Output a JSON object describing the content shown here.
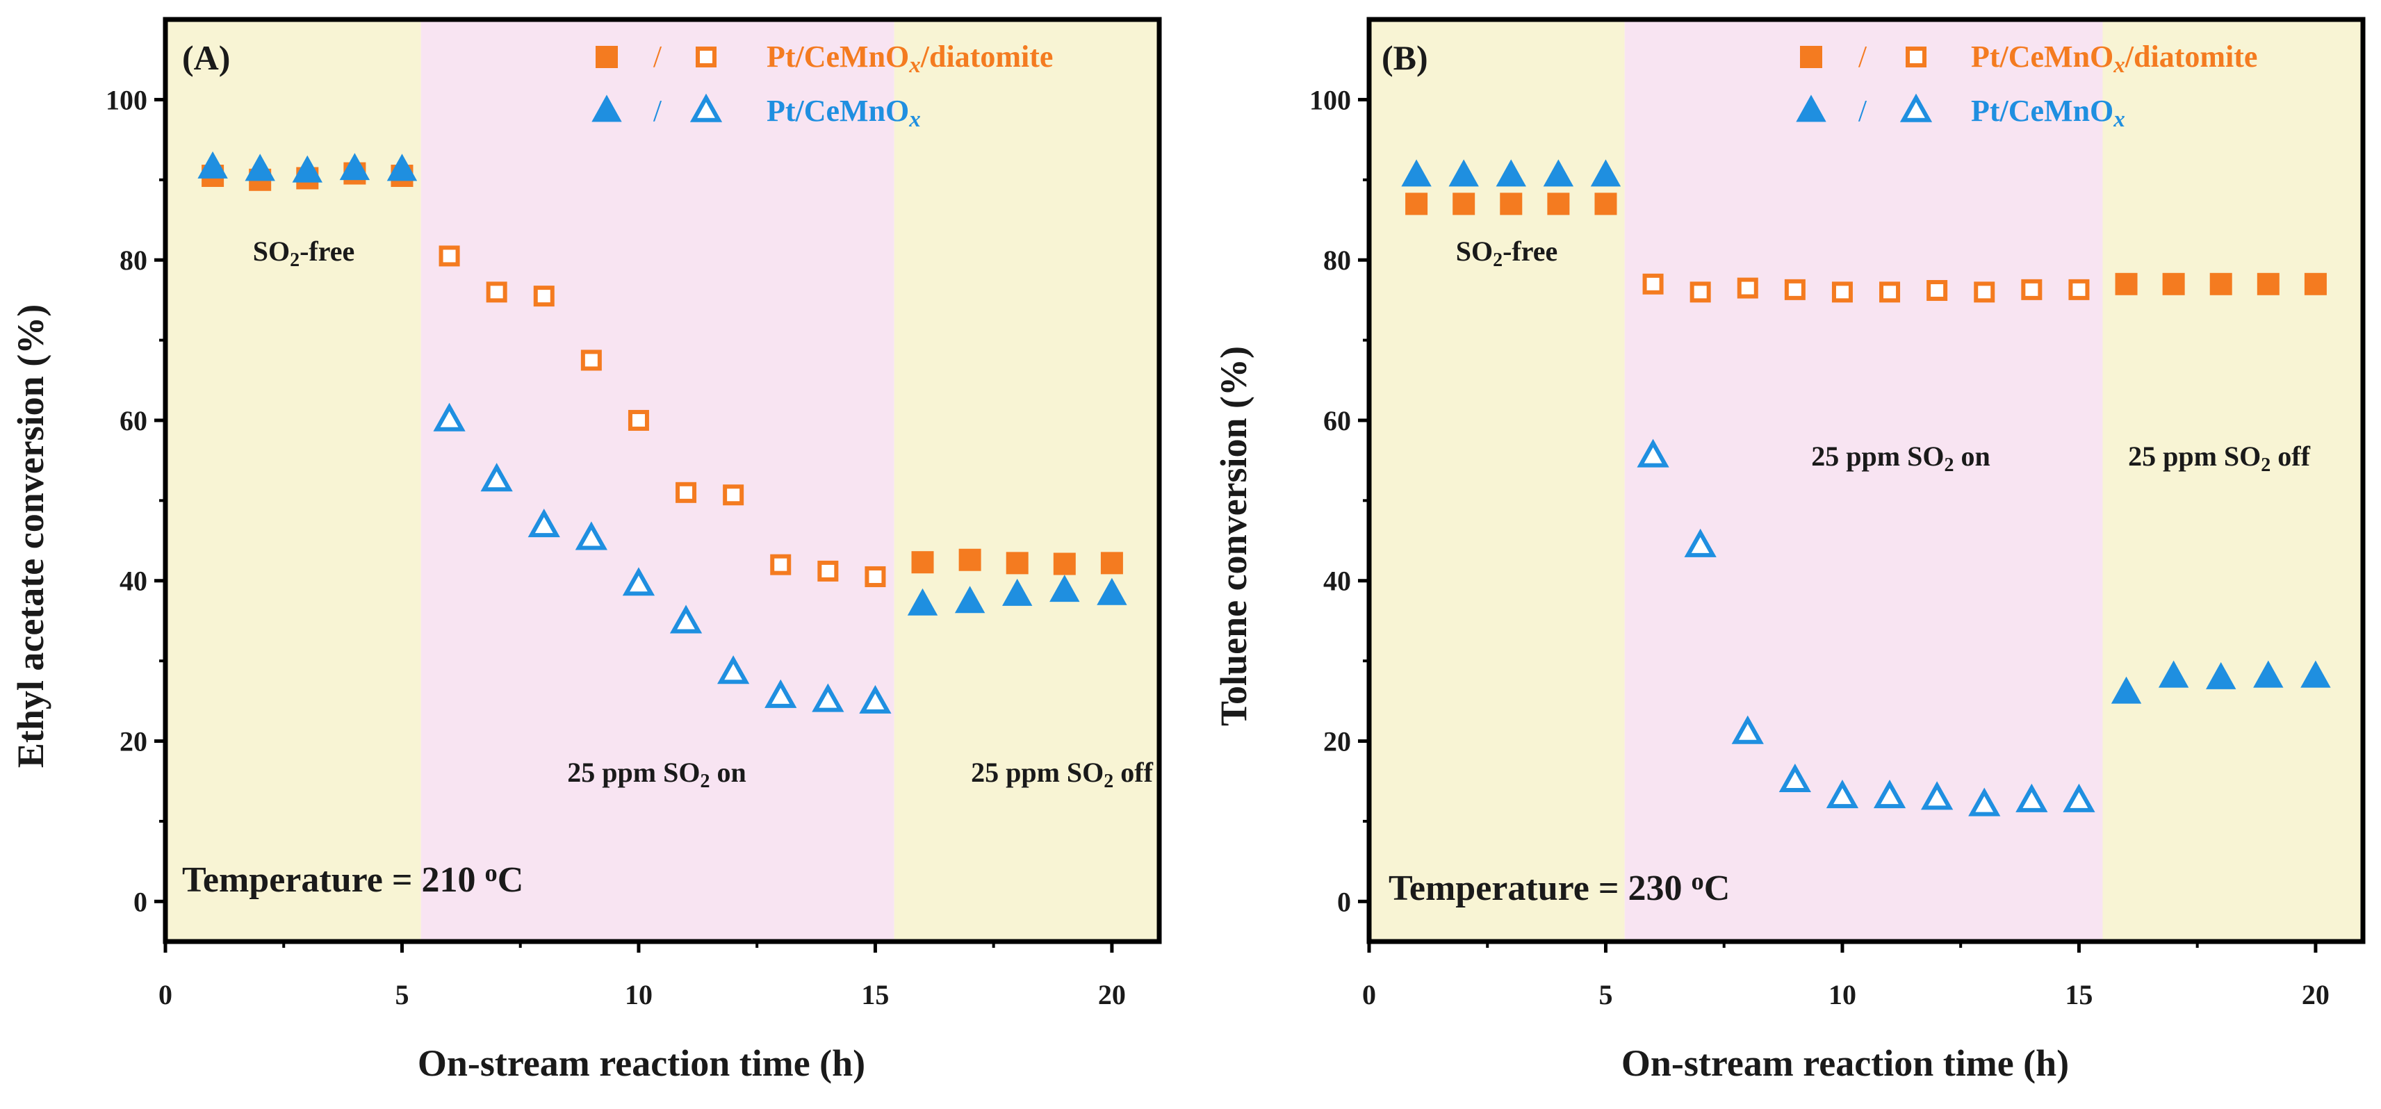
{
  "colors": {
    "orange": "#f47b20",
    "blue": "#1f8fe0",
    "yellow_region": "#f8f4d4",
    "pink_region": "#f8e4f2",
    "axis": "#000000"
  },
  "chart_data": [
    {
      "type": "scatter",
      "panel_label": "(A)",
      "ylabel": "Ethyl acetate conversion (%)",
      "xlabel": "On-stream reaction time (h)",
      "xlim": [
        0,
        21
      ],
      "ylim": [
        -5,
        110
      ],
      "xticks": [
        0,
        5,
        10,
        15,
        20
      ],
      "yticks": [
        0,
        20,
        40,
        60,
        80,
        100
      ],
      "regions": [
        {
          "x0": 0,
          "x1": 5.4,
          "label": "SO2-free",
          "color_key": "yellow_region"
        },
        {
          "x0": 5.4,
          "x1": 15.4,
          "label": "25 ppm SO2 on",
          "color_key": "pink_region"
        },
        {
          "x0": 15.4,
          "x1": 21,
          "label": "25 ppm SO2 off",
          "color_key": "yellow_region"
        }
      ],
      "annotations": {
        "so2_free": {
          "main": "SO",
          "sub": "2",
          "rest": "-free"
        },
        "so2_on": {
          "main": "25 ppm SO",
          "sub": "2",
          "rest": " on"
        },
        "so2_off": {
          "main": "25 ppm SO",
          "sub": "2",
          "rest": " off"
        },
        "temperature": {
          "main": "Temperature = 210 ",
          "sup": "o",
          "rest": "C"
        }
      },
      "legend": [
        {
          "marker_filled": "square-filled",
          "marker_open": "square-open",
          "slash": "/",
          "label_main": "Pt/CeMnO",
          "label_sub": "x",
          "label_rest": "/diatomite",
          "color_key": "orange"
        },
        {
          "marker_filled": "triangle-filled",
          "marker_open": "triangle-open",
          "slash": "/",
          "label_main": "Pt/CeMnO",
          "label_sub": "x",
          "label_rest": "",
          "color_key": "blue"
        }
      ],
      "series": [
        {
          "name": "Pt/CeMnOx/diatomite",
          "marker": "square",
          "color_key": "orange",
          "points": [
            {
              "x": 1,
              "y": 90.5,
              "filled": true
            },
            {
              "x": 2,
              "y": 90.0,
              "filled": true
            },
            {
              "x": 3,
              "y": 90.2,
              "filled": true
            },
            {
              "x": 4,
              "y": 90.8,
              "filled": true
            },
            {
              "x": 5,
              "y": 90.5,
              "filled": true
            },
            {
              "x": 6,
              "y": 80.5,
              "filled": false
            },
            {
              "x": 7,
              "y": 76.0,
              "filled": false
            },
            {
              "x": 8,
              "y": 75.5,
              "filled": false
            },
            {
              "x": 9,
              "y": 67.5,
              "filled": false
            },
            {
              "x": 10,
              "y": 60.0,
              "filled": false
            },
            {
              "x": 11,
              "y": 51.0,
              "filled": false
            },
            {
              "x": 12,
              "y": 50.7,
              "filled": false
            },
            {
              "x": 13,
              "y": 42.0,
              "filled": false
            },
            {
              "x": 14,
              "y": 41.2,
              "filled": false
            },
            {
              "x": 15,
              "y": 40.5,
              "filled": false
            },
            {
              "x": 16,
              "y": 42.3,
              "filled": true
            },
            {
              "x": 17,
              "y": 42.6,
              "filled": true
            },
            {
              "x": 18,
              "y": 42.2,
              "filled": true
            },
            {
              "x": 19,
              "y": 42.1,
              "filled": true
            },
            {
              "x": 20,
              "y": 42.2,
              "filled": true
            }
          ]
        },
        {
          "name": "Pt/CeMnOx",
          "marker": "triangle",
          "color_key": "blue",
          "points": [
            {
              "x": 1,
              "y": 91.5,
              "filled": true
            },
            {
              "x": 2,
              "y": 91.2,
              "filled": true
            },
            {
              "x": 3,
              "y": 91.0,
              "filled": true
            },
            {
              "x": 4,
              "y": 91.3,
              "filled": true
            },
            {
              "x": 5,
              "y": 91.2,
              "filled": true
            },
            {
              "x": 6,
              "y": 60.0,
              "filled": false
            },
            {
              "x": 7,
              "y": 52.5,
              "filled": false
            },
            {
              "x": 8,
              "y": 46.8,
              "filled": false
            },
            {
              "x": 9,
              "y": 45.2,
              "filled": false
            },
            {
              "x": 10,
              "y": 39.5,
              "filled": false
            },
            {
              "x": 11,
              "y": 34.8,
              "filled": false
            },
            {
              "x": 12,
              "y": 28.5,
              "filled": false
            },
            {
              "x": 13,
              "y": 25.5,
              "filled": false
            },
            {
              "x": 14,
              "y": 25.0,
              "filled": false
            },
            {
              "x": 15,
              "y": 24.8,
              "filled": false
            },
            {
              "x": 16,
              "y": 37.0,
              "filled": true
            },
            {
              "x": 17,
              "y": 37.3,
              "filled": true
            },
            {
              "x": 18,
              "y": 38.2,
              "filled": true
            },
            {
              "x": 19,
              "y": 38.7,
              "filled": true
            },
            {
              "x": 20,
              "y": 38.3,
              "filled": true
            }
          ]
        }
      ]
    },
    {
      "type": "scatter",
      "panel_label": "(B)",
      "ylabel": "Toluene conversion (%)",
      "xlabel": "On-stream reaction time (h)",
      "xlim": [
        0,
        21
      ],
      "ylim": [
        -5,
        110
      ],
      "xticks": [
        0,
        5,
        10,
        15,
        20
      ],
      "yticks": [
        0,
        20,
        40,
        60,
        80,
        100
      ],
      "regions": [
        {
          "x0": 0,
          "x1": 5.4,
          "label": "SO2-free",
          "color_key": "yellow_region"
        },
        {
          "x0": 5.4,
          "x1": 15.5,
          "label": "25 ppm SO2 on",
          "color_key": "pink_region"
        },
        {
          "x0": 15.5,
          "x1": 21,
          "label": "25 ppm SO2 off",
          "color_key": "yellow_region"
        }
      ],
      "annotations": {
        "so2_free": {
          "main": "SO",
          "sub": "2",
          "rest": "-free"
        },
        "so2_on": {
          "main": "25 ppm SO",
          "sub": "2",
          "rest": " on"
        },
        "so2_off": {
          "main": "25 ppm SO",
          "sub": "2",
          "rest": " off"
        },
        "temperature": {
          "main": "Temperature = 230 ",
          "sup": "o",
          "rest": "C"
        }
      },
      "legend": [
        {
          "marker_filled": "square-filled",
          "marker_open": "square-open",
          "slash": "/",
          "label_main": "Pt/CeMnO",
          "label_sub": "x",
          "label_rest": "/diatomite",
          "color_key": "orange"
        },
        {
          "marker_filled": "triangle-filled",
          "marker_open": "triangle-open",
          "slash": "/",
          "label_main": "Pt/CeMnO",
          "label_sub": "x",
          "label_rest": "",
          "color_key": "blue"
        }
      ],
      "series": [
        {
          "name": "Pt/CeMnOx/diatomite",
          "marker": "square",
          "color_key": "orange",
          "points": [
            {
              "x": 1,
              "y": 87.0,
              "filled": true
            },
            {
              "x": 2,
              "y": 87.0,
              "filled": true
            },
            {
              "x": 3,
              "y": 87.0,
              "filled": true
            },
            {
              "x": 4,
              "y": 87.0,
              "filled": true
            },
            {
              "x": 5,
              "y": 87.0,
              "filled": true
            },
            {
              "x": 6,
              "y": 77.0,
              "filled": false
            },
            {
              "x": 7,
              "y": 76.0,
              "filled": false
            },
            {
              "x": 8,
              "y": 76.5,
              "filled": false
            },
            {
              "x": 9,
              "y": 76.3,
              "filled": false
            },
            {
              "x": 10,
              "y": 76.0,
              "filled": false
            },
            {
              "x": 11,
              "y": 76.0,
              "filled": false
            },
            {
              "x": 12,
              "y": 76.2,
              "filled": false
            },
            {
              "x": 13,
              "y": 76.0,
              "filled": false
            },
            {
              "x": 14,
              "y": 76.3,
              "filled": false
            },
            {
              "x": 15,
              "y": 76.3,
              "filled": false
            },
            {
              "x": 16,
              "y": 77.0,
              "filled": true
            },
            {
              "x": 17,
              "y": 77.0,
              "filled": true
            },
            {
              "x": 18,
              "y": 77.0,
              "filled": true
            },
            {
              "x": 19,
              "y": 77.0,
              "filled": true
            },
            {
              "x": 20,
              "y": 77.0,
              "filled": true
            }
          ]
        },
        {
          "name": "Pt/CeMnOx",
          "marker": "triangle",
          "color_key": "blue",
          "points": [
            {
              "x": 1,
              "y": 90.5,
              "filled": true
            },
            {
              "x": 2,
              "y": 90.5,
              "filled": true
            },
            {
              "x": 3,
              "y": 90.5,
              "filled": true
            },
            {
              "x": 4,
              "y": 90.5,
              "filled": true
            },
            {
              "x": 5,
              "y": 90.5,
              "filled": true
            },
            {
              "x": 6,
              "y": 55.5,
              "filled": false
            },
            {
              "x": 7,
              "y": 44.3,
              "filled": false
            },
            {
              "x": 8,
              "y": 21.0,
              "filled": false
            },
            {
              "x": 9,
              "y": 15.0,
              "filled": false
            },
            {
              "x": 10,
              "y": 13.0,
              "filled": false
            },
            {
              "x": 11,
              "y": 13.0,
              "filled": false
            },
            {
              "x": 12,
              "y": 12.8,
              "filled": false
            },
            {
              "x": 13,
              "y": 12.0,
              "filled": false
            },
            {
              "x": 14,
              "y": 12.5,
              "filled": false
            },
            {
              "x": 15,
              "y": 12.5,
              "filled": false
            },
            {
              "x": 16,
              "y": 26.0,
              "filled": true
            },
            {
              "x": 17,
              "y": 28.0,
              "filled": true
            },
            {
              "x": 18,
              "y": 27.8,
              "filled": true
            },
            {
              "x": 19,
              "y": 28.0,
              "filled": true
            },
            {
              "x": 20,
              "y": 28.0,
              "filled": true
            }
          ]
        }
      ]
    }
  ]
}
